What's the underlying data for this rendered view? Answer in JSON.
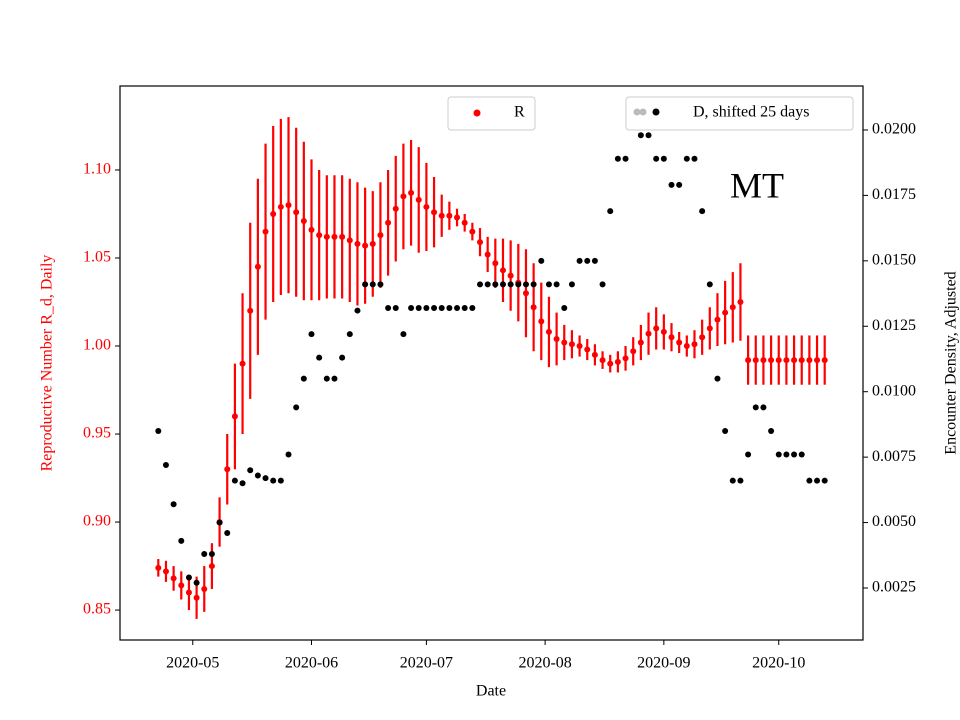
{
  "chart_data": {
    "type": "scatter",
    "title": "MT",
    "xlabel": "Date",
    "ylabel": "Reproductive Number R_d, Daily",
    "y2label": "Encounter Density, Adjusted",
    "x": [
      "2020-04-22",
      "2020-04-24",
      "2020-04-26",
      "2020-04-28",
      "2020-04-30",
      "2020-05-02",
      "2020-05-04",
      "2020-05-06",
      "2020-05-08",
      "2020-05-10",
      "2020-05-12",
      "2020-05-14",
      "2020-05-16",
      "2020-05-18",
      "2020-05-20",
      "2020-05-22",
      "2020-05-24",
      "2020-05-26",
      "2020-05-28",
      "2020-05-30",
      "2020-06-01",
      "2020-06-03",
      "2020-06-05",
      "2020-06-07",
      "2020-06-09",
      "2020-06-11",
      "2020-06-13",
      "2020-06-15",
      "2020-06-17",
      "2020-06-19",
      "2020-06-21",
      "2020-06-23",
      "2020-06-25",
      "2020-06-27",
      "2020-06-29",
      "2020-07-01",
      "2020-07-03",
      "2020-07-05",
      "2020-07-07",
      "2020-07-09",
      "2020-07-11",
      "2020-07-13",
      "2020-07-15",
      "2020-07-17",
      "2020-07-19",
      "2020-07-21",
      "2020-07-23",
      "2020-07-25",
      "2020-07-27",
      "2020-07-29",
      "2020-07-31",
      "2020-08-02",
      "2020-08-04",
      "2020-08-06",
      "2020-08-08",
      "2020-08-10",
      "2020-08-12",
      "2020-08-14",
      "2020-08-16",
      "2020-08-18",
      "2020-08-20",
      "2020-08-22",
      "2020-08-24",
      "2020-08-26",
      "2020-08-28",
      "2020-08-30",
      "2020-09-01",
      "2020-09-03",
      "2020-09-05",
      "2020-09-07",
      "2020-09-09",
      "2020-09-11",
      "2020-09-13",
      "2020-09-15",
      "2020-09-17",
      "2020-09-19",
      "2020-09-21",
      "2020-09-23",
      "2020-09-25",
      "2020-09-27",
      "2020-09-29",
      "2020-10-01",
      "2020-10-03",
      "2020-10-05",
      "2020-10-07",
      "2020-10-09",
      "2020-10-11",
      "2020-10-13"
    ],
    "series": [
      {
        "name": "R",
        "color": "#ff0000",
        "values": [
          0.874,
          0.872,
          0.868,
          0.864,
          0.86,
          0.857,
          0.862,
          0.875,
          0.9,
          0.93,
          0.96,
          0.99,
          1.02,
          1.045,
          1.065,
          1.075,
          1.079,
          1.08,
          1.076,
          1.071,
          1.066,
          1.063,
          1.062,
          1.062,
          1.062,
          1.06,
          1.058,
          1.057,
          1.058,
          1.063,
          1.07,
          1.078,
          1.085,
          1.087,
          1.083,
          1.079,
          1.076,
          1.074,
          1.074,
          1.073,
          1.07,
          1.065,
          1.059,
          1.052,
          1.047,
          1.043,
          1.04,
          1.036,
          1.03,
          1.022,
          1.014,
          1.008,
          1.004,
          1.002,
          1.001,
          1.0,
          0.998,
          0.995,
          0.992,
          0.99,
          0.991,
          0.993,
          0.997,
          1.002,
          1.007,
          1.01,
          1.008,
          1.005,
          1.002,
          1.0,
          1.001,
          1.005,
          1.01,
          1.015,
          1.019,
          1.022,
          1.025,
          0.992,
          0.992,
          0.992,
          0.992,
          0.992,
          0.992,
          0.992,
          0.992,
          0.992,
          0.992,
          0.992
        ],
        "errors": [
          0.005,
          0.006,
          0.007,
          0.008,
          0.01,
          0.012,
          0.013,
          0.013,
          0.014,
          0.02,
          0.03,
          0.04,
          0.05,
          0.05,
          0.05,
          0.05,
          0.05,
          0.05,
          0.048,
          0.045,
          0.04,
          0.037,
          0.035,
          0.035,
          0.035,
          0.035,
          0.035,
          0.033,
          0.03,
          0.03,
          0.03,
          0.03,
          0.03,
          0.03,
          0.03,
          0.025,
          0.02,
          0.012,
          0.008,
          0.005,
          0.005,
          0.005,
          0.008,
          0.01,
          0.014,
          0.018,
          0.02,
          0.022,
          0.025,
          0.025,
          0.022,
          0.02,
          0.015,
          0.01,
          0.008,
          0.006,
          0.006,
          0.006,
          0.005,
          0.005,
          0.006,
          0.007,
          0.008,
          0.01,
          0.012,
          0.012,
          0.01,
          0.008,
          0.006,
          0.006,
          0.008,
          0.01,
          0.012,
          0.015,
          0.018,
          0.02,
          0.022,
          0.014,
          0.014,
          0.014,
          0.014,
          0.014,
          0.014,
          0.014,
          0.014,
          0.014,
          0.014,
          0.014
        ]
      },
      {
        "name": "D, shifted 25 days",
        "color": "#000000",
        "axis": "y2",
        "values": [
          0.0085,
          0.0072,
          0.0057,
          0.0043,
          0.0029,
          0.0027,
          0.0038,
          0.0038,
          0.005,
          0.0046,
          0.0066,
          0.0065,
          0.007,
          0.0068,
          0.0067,
          0.0066,
          0.0066,
          0.0076,
          0.0094,
          0.0105,
          0.0122,
          0.0113,
          0.0105,
          0.0105,
          0.0113,
          0.0122,
          0.0131,
          0.0141,
          0.0141,
          0.0141,
          0.0132,
          0.0132,
          0.0122,
          0.0132,
          0.0132,
          0.0132,
          0.0132,
          0.0132,
          0.0132,
          0.0132,
          0.0132,
          0.0132,
          0.0141,
          0.0141,
          0.0141,
          0.0141,
          0.0141,
          0.0141,
          0.0141,
          0.0141,
          0.015,
          0.0141,
          0.0141,
          0.0132,
          0.0141,
          0.015,
          0.015,
          0.015,
          0.0141,
          0.0169,
          0.0189,
          0.0189,
          0.0206,
          0.0198,
          0.0198,
          0.0189,
          0.0189,
          0.0179,
          0.0179,
          0.0189,
          0.0189,
          0.0169,
          0.0141,
          0.0105,
          0.0085,
          0.0066,
          0.0066,
          0.0076,
          0.0094,
          0.0094,
          0.0085,
          0.0076,
          0.0076,
          0.0076,
          0.0076,
          0.0066,
          0.0066,
          0.0066
        ]
      }
    ],
    "xlim": [
      "2020-04-12",
      "2020-10-23"
    ],
    "xticks": [
      {
        "value": "2020-05-01",
        "label": "2020-05"
      },
      {
        "value": "2020-06-01",
        "label": "2020-06"
      },
      {
        "value": "2020-07-01",
        "label": "2020-07"
      },
      {
        "value": "2020-08-01",
        "label": "2020-08"
      },
      {
        "value": "2020-09-01",
        "label": "2020-09"
      },
      {
        "value": "2020-10-01",
        "label": "2020-10"
      }
    ],
    "ylim": [
      0.833,
      1.1477
    ],
    "yticks": [
      0.85,
      {
        "value": 0.9,
        "label": "0.90"
      },
      0.95,
      {
        "value": 1.0,
        "label": "1.00"
      },
      1.05,
      {
        "value": 1.1,
        "label": "1.10"
      }
    ],
    "y2lim": [
      0.000513,
      0.02168
    ],
    "y2ticks": [
      0.0025,
      {
        "value": 0.005,
        "label": "0.0050"
      },
      0.0075,
      {
        "value": 0.01,
        "label": "0.0100"
      },
      0.0125,
      {
        "value": 0.015,
        "label": "0.0150"
      },
      0.0175,
      {
        "value": 0.02,
        "label": "0.0200"
      }
    ],
    "ytick_color": "#ff0000",
    "grid": false
  }
}
